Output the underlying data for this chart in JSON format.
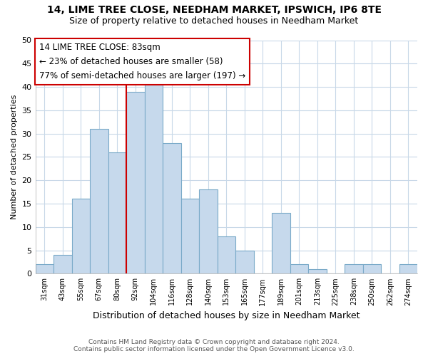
{
  "title": "14, LIME TREE CLOSE, NEEDHAM MARKET, IPSWICH, IP6 8TE",
  "subtitle": "Size of property relative to detached houses in Needham Market",
  "xlabel": "Distribution of detached houses by size in Needham Market",
  "ylabel": "Number of detached properties",
  "bin_labels": [
    "31sqm",
    "43sqm",
    "55sqm",
    "67sqm",
    "80sqm",
    "92sqm",
    "104sqm",
    "116sqm",
    "128sqm",
    "140sqm",
    "153sqm",
    "165sqm",
    "177sqm",
    "189sqm",
    "201sqm",
    "213sqm",
    "225sqm",
    "238sqm",
    "250sqm",
    "262sqm",
    "274sqm"
  ],
  "bar_heights": [
    2,
    4,
    16,
    31,
    26,
    39,
    41,
    28,
    16,
    18,
    8,
    5,
    0,
    13,
    2,
    1,
    0,
    2,
    2,
    0,
    2
  ],
  "bar_color": "#c6d9ec",
  "bar_edge_color": "#7aaac8",
  "vline_x_index": 5,
  "annotation_title": "14 LIME TREE CLOSE: 83sqm",
  "annotation_line1": "← 23% of detached houses are smaller (58)",
  "annotation_line2": "77% of semi-detached houses are larger (197) →",
  "annotation_box_color": "#ffffff",
  "annotation_border_color": "#cc0000",
  "vline_color": "#cc0000",
  "ylim": [
    0,
    50
  ],
  "yticks": [
    0,
    5,
    10,
    15,
    20,
    25,
    30,
    35,
    40,
    45,
    50
  ],
  "footer1": "Contains HM Land Registry data © Crown copyright and database right 2024.",
  "footer2": "Contains public sector information licensed under the Open Government Licence v3.0.",
  "bg_color": "#ffffff",
  "grid_color": "#c8d8e8"
}
